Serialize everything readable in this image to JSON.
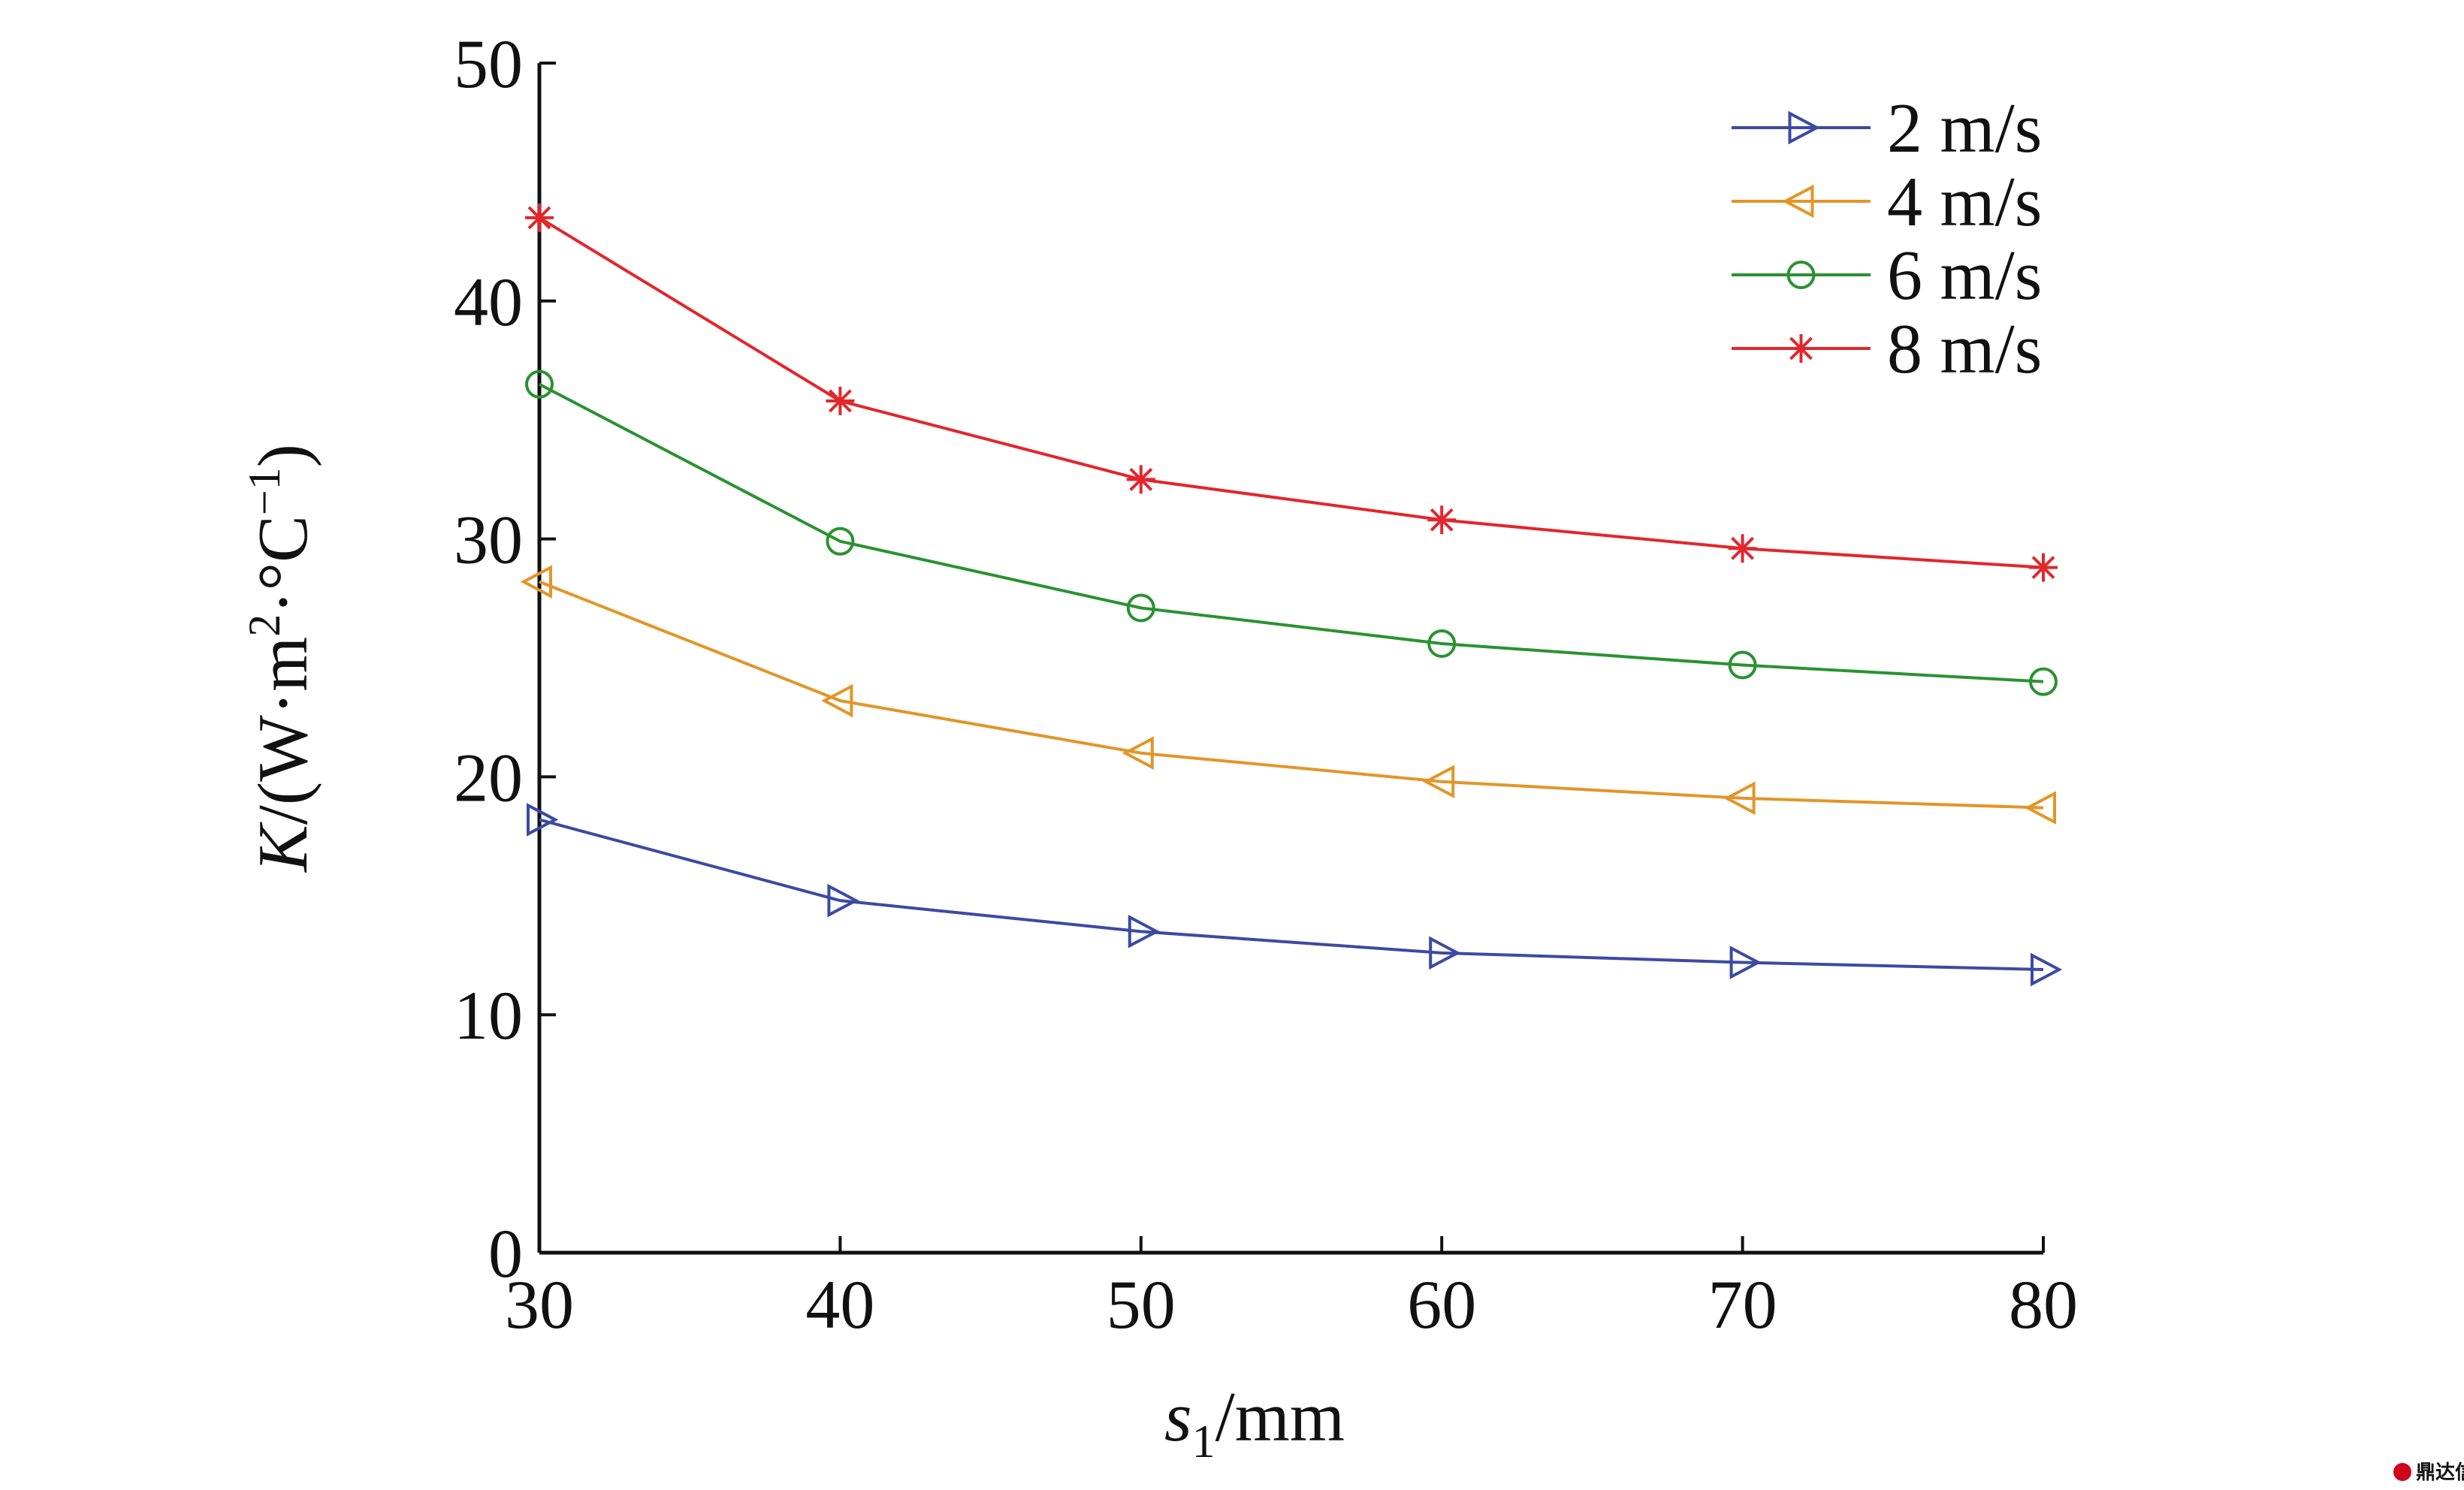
{
  "chart_data": {
    "type": "line",
    "x_label": {
      "main": "s",
      "sub": "1",
      "unit": "/mm"
    },
    "y_label": {
      "pre": "K",
      "mid": "/(W·m",
      "sup1": "2",
      "mid2": "·°C",
      "sup2": "−1",
      "post": ")"
    },
    "x": [
      30,
      40,
      50,
      60,
      70,
      80
    ],
    "x_ticks": [
      "30",
      "40",
      "50",
      "60",
      "70",
      "80"
    ],
    "y_ticks": [
      "0",
      "10",
      "20",
      "30",
      "40",
      "50"
    ],
    "xlim": [
      30,
      80
    ],
    "ylim": [
      0,
      50
    ],
    "grid": false,
    "legend_position": "top-right",
    "series": [
      {
        "name": "2 m/s",
        "color": "#3b4aa3",
        "marker": "triangle-right",
        "values": [
          18.2,
          14.8,
          13.5,
          12.6,
          12.2,
          11.9
        ]
      },
      {
        "name": "4 m/s",
        "color": "#e39528",
        "marker": "triangle-left",
        "values": [
          28.2,
          23.2,
          21.0,
          19.8,
          19.1,
          18.7
        ]
      },
      {
        "name": "6 m/s",
        "color": "#2a9231",
        "marker": "circle",
        "values": [
          36.5,
          29.9,
          27.1,
          25.6,
          24.7,
          24.0
        ]
      },
      {
        "name": "8 m/s",
        "color": "#e3262b",
        "marker": "asterisk",
        "values": [
          43.5,
          35.8,
          32.5,
          30.8,
          29.6,
          28.8
        ]
      }
    ]
  },
  "watermark": {
    "logo_icon": "dingda-logo-icon",
    "text": "鼎达信"
  }
}
